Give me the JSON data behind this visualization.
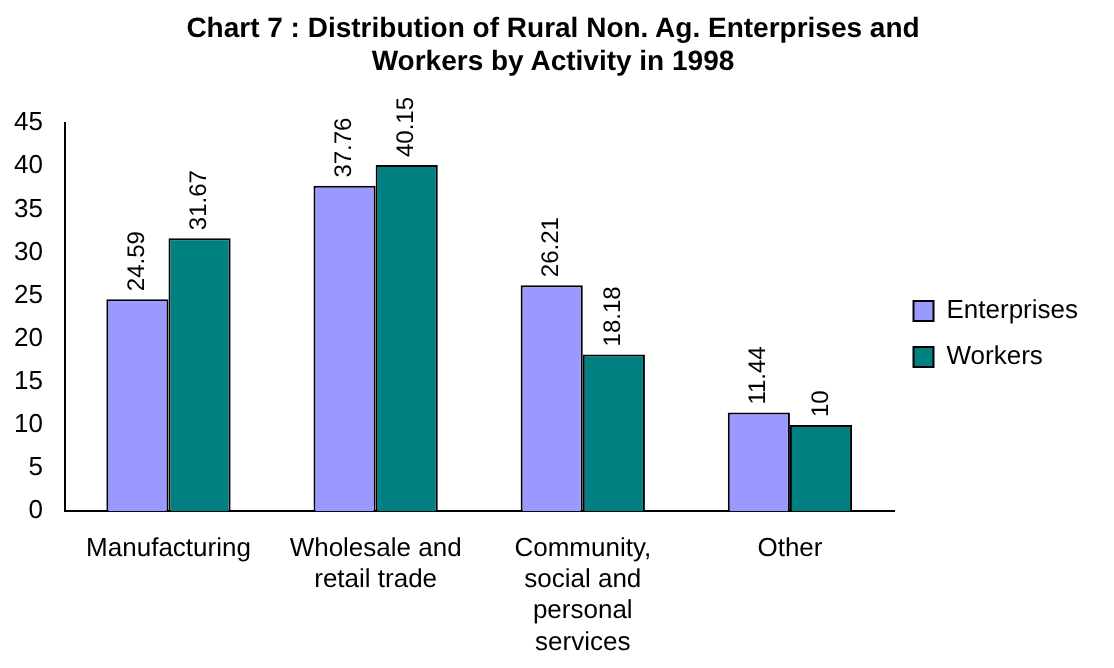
{
  "chart_data": {
    "type": "bar",
    "title": "Chart 7 : Distribution of Rural Non. Ag. Enterprises and Workers by Activity in 1998",
    "categories": [
      "Manufacturing",
      "Wholesale and retail trade",
      "Community, social and personal services",
      "Other"
    ],
    "series": [
      {
        "name": "Enterprises",
        "color": "#9999ff",
        "values": [
          24.59,
          37.76,
          26.21,
          11.44
        ]
      },
      {
        "name": "Workers",
        "color": "#008080",
        "values": [
          31.67,
          40.15,
          18.18,
          10
        ]
      }
    ],
    "ylim": [
      0,
      45
    ],
    "yticks": [
      0,
      5,
      10,
      15,
      20,
      25,
      30,
      35,
      40,
      45
    ],
    "grid": false,
    "legend": "right",
    "data_labels": true
  }
}
